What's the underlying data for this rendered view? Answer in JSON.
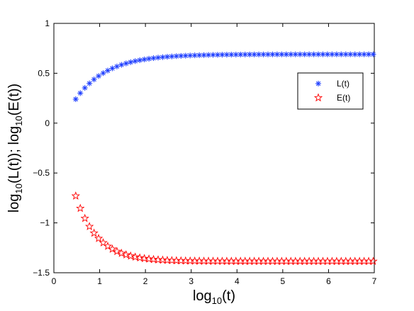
{
  "chart_data": {
    "type": "scatter",
    "title": "",
    "xlabel": {
      "base": "log",
      "sub": "10",
      "rest": "(t)"
    },
    "ylabel": {
      "parts": [
        {
          "t": "log",
          "sub": false
        },
        {
          "t": "10",
          "sub": true
        },
        {
          "t": "(L(t)); log",
          "sub": false
        },
        {
          "t": "10",
          "sub": true
        },
        {
          "t": "(E(t))",
          "sub": false
        }
      ]
    },
    "xlim": [
      0,
      7
    ],
    "ylim": [
      -1.5,
      1
    ],
    "xticks": [
      0,
      1,
      2,
      3,
      4,
      5,
      6,
      7
    ],
    "xtick_labels": [
      "0",
      "1",
      "2",
      "3",
      "4",
      "5",
      "6",
      "7"
    ],
    "yticks": [
      -1.5,
      -1,
      -0.5,
      0,
      0.5,
      1
    ],
    "ytick_labels": [
      "−1.5",
      "−1",
      "−0.5",
      "0",
      "0.5",
      "1"
    ],
    "grid": false,
    "legend_position": "upper-right",
    "series": [
      {
        "name": "L(t)",
        "marker": "asterisk",
        "color": "#1f3fff",
        "x_start": 0.477,
        "x_step": 0.1,
        "x_end": 7.0,
        "y_asymptote": 0.69,
        "y_initial": 0.24,
        "decay_rate": 1.45
      },
      {
        "name": "E(t)",
        "marker": "star",
        "color": "#ff0000",
        "x_start": 0.477,
        "x_step": 0.1,
        "x_end": 7.0,
        "y_asymptote": -1.385,
        "y_initial": -0.73,
        "decay_rate": 2.1
      }
    ]
  }
}
